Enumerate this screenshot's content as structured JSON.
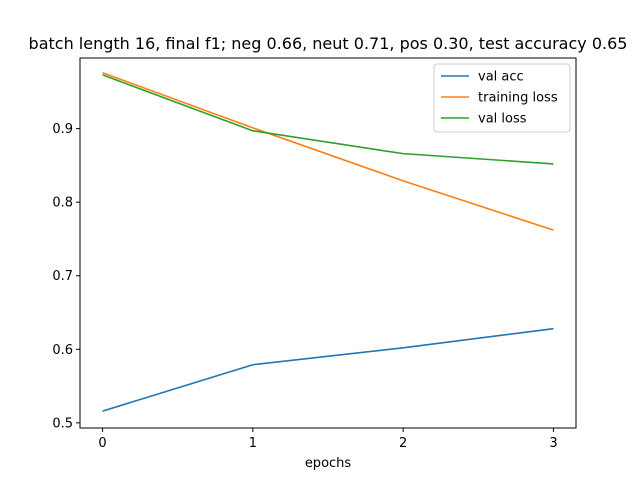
{
  "chart_data": {
    "type": "line",
    "title": "batch length 16, final f1; neg 0.66, neut 0.71, pos 0.30, test accuracy 0.65",
    "xlabel": "epochs",
    "ylabel": "",
    "x": [
      0,
      1,
      2,
      3
    ],
    "x_ticks": [
      "0",
      "1",
      "2",
      "3"
    ],
    "y_ticks": [
      "0.5",
      "0.6",
      "0.7",
      "0.8",
      "0.9"
    ],
    "xlim": [
      -0.15,
      3.15
    ],
    "ylim": [
      0.493,
      0.996
    ],
    "grid": false,
    "legend_position": "top-right",
    "series": [
      {
        "name": "val acc",
        "color": "#1f77b4",
        "values": [
          0.516,
          0.579,
          0.602,
          0.628
        ]
      },
      {
        "name": "training loss",
        "color": "#ff7f0e",
        "values": [
          0.976,
          0.901,
          0.829,
          0.762
        ]
      },
      {
        "name": "val loss",
        "color": "#2ca02c",
        "values": [
          0.973,
          0.897,
          0.866,
          0.852
        ]
      }
    ]
  }
}
